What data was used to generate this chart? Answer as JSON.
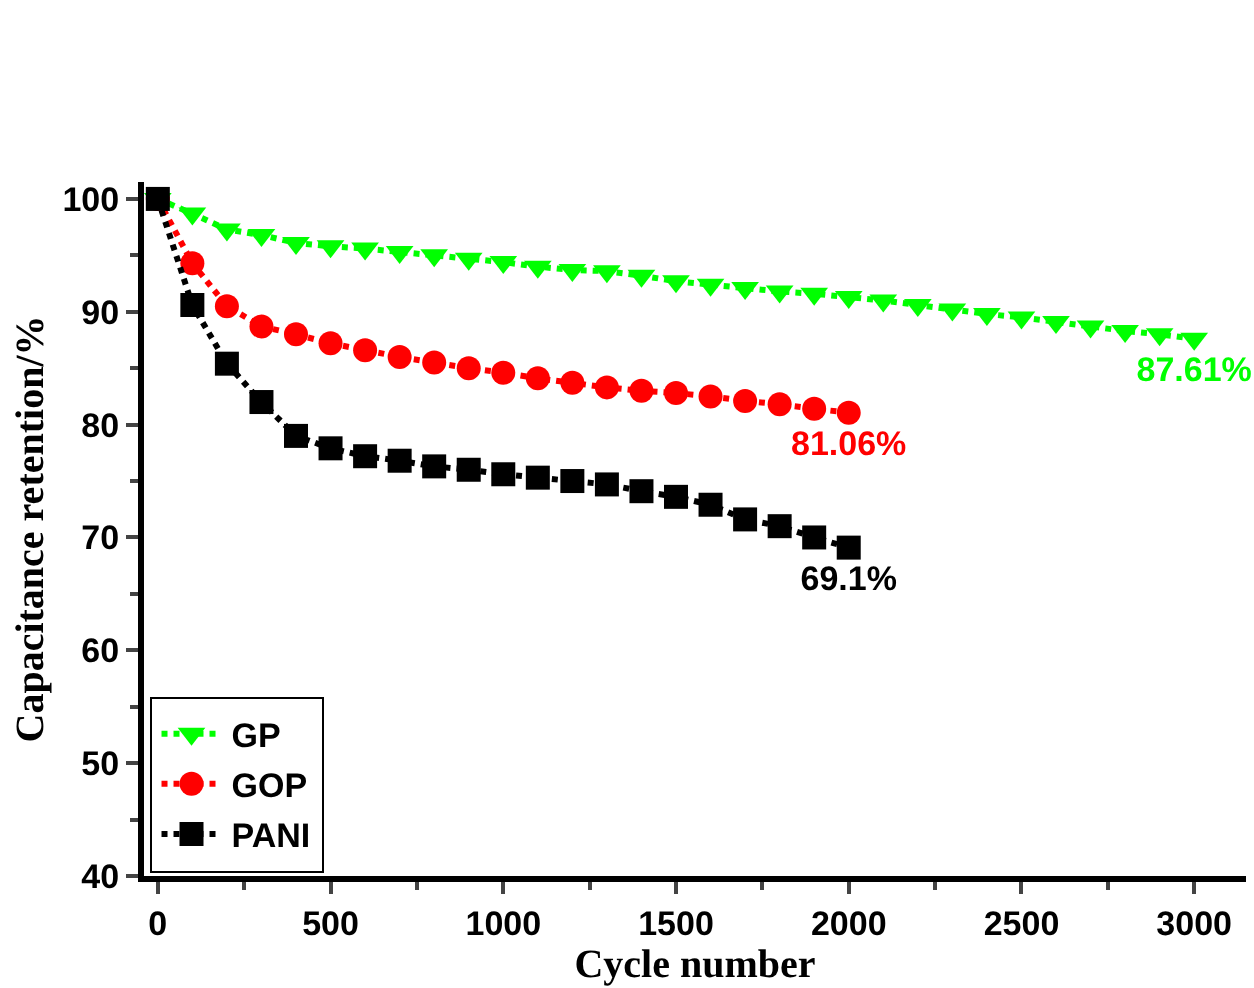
{
  "chart_data": {
    "type": "line",
    "xlabel": "Cycle number",
    "ylabel": "Capacitance retention/%",
    "xlim": [
      -40,
      3150
    ],
    "ylim": [
      40,
      101.5
    ],
    "xticks": [
      0,
      500,
      1000,
      1500,
      2000,
      2500,
      3000
    ],
    "yticks": [
      40,
      50,
      60,
      70,
      80,
      90,
      100
    ],
    "legend": "bottom left",
    "line_style": "dotted",
    "series": [
      {
        "name": "GP",
        "color": "#00ff00",
        "marker": "triangle",
        "x": [
          0,
          100,
          200,
          300,
          400,
          500,
          600,
          700,
          800,
          900,
          1000,
          1100,
          1200,
          1300,
          1400,
          1500,
          1600,
          1700,
          1800,
          1900,
          2000,
          2100,
          2200,
          2300,
          2400,
          2500,
          2600,
          2700,
          2800,
          2900,
          3000
        ],
        "values": [
          100,
          98.7,
          97.3,
          96.8,
          96.1,
          95.8,
          95.6,
          95.3,
          95.0,
          94.7,
          94.4,
          94.0,
          93.7,
          93.6,
          93.2,
          92.7,
          92.4,
          92.1,
          91.8,
          91.6,
          91.3,
          91.0,
          90.6,
          90.2,
          89.8,
          89.5,
          89.1,
          88.7,
          88.3,
          88.0,
          87.61
        ],
        "value_labels": [
          null,
          null,
          null,
          null,
          null,
          null,
          null,
          null,
          null,
          null,
          null,
          null,
          null,
          null,
          null,
          null,
          null,
          null,
          null,
          null,
          null,
          null,
          null,
          null,
          null,
          null,
          null,
          null,
          null,
          null,
          "87.61%"
        ]
      },
      {
        "name": "GOP",
        "color": "#ff0000",
        "marker": "circle",
        "x": [
          0,
          100,
          200,
          300,
          400,
          500,
          600,
          700,
          800,
          900,
          1000,
          1100,
          1200,
          1300,
          1400,
          1500,
          1600,
          1700,
          1800,
          1900,
          2000
        ],
        "values": [
          100,
          94.3,
          90.5,
          88.7,
          88.0,
          87.2,
          86.6,
          86.0,
          85.5,
          85.0,
          84.6,
          84.1,
          83.7,
          83.3,
          83.0,
          82.8,
          82.5,
          82.1,
          81.8,
          81.4,
          81.06
        ],
        "value_labels": [
          null,
          null,
          null,
          null,
          null,
          null,
          null,
          null,
          null,
          null,
          null,
          null,
          null,
          null,
          null,
          null,
          null,
          null,
          null,
          null,
          "81.06%"
        ]
      },
      {
        "name": "PANI",
        "color": "#000000",
        "marker": "square",
        "x": [
          0,
          100,
          200,
          300,
          400,
          500,
          600,
          700,
          800,
          900,
          1000,
          1100,
          1200,
          1300,
          1400,
          1500,
          1600,
          1700,
          1800,
          1900,
          2000
        ],
        "values": [
          100,
          90.6,
          85.4,
          82.0,
          79.0,
          77.9,
          77.2,
          76.8,
          76.3,
          76.0,
          75.6,
          75.3,
          75.0,
          74.7,
          74.1,
          73.6,
          72.9,
          71.6,
          71.0,
          70.0,
          69.1
        ],
        "value_labels": [
          null,
          null,
          null,
          null,
          null,
          null,
          null,
          null,
          null,
          null,
          null,
          null,
          null,
          null,
          null,
          null,
          null,
          null,
          null,
          null,
          "69.1%"
        ]
      }
    ]
  }
}
